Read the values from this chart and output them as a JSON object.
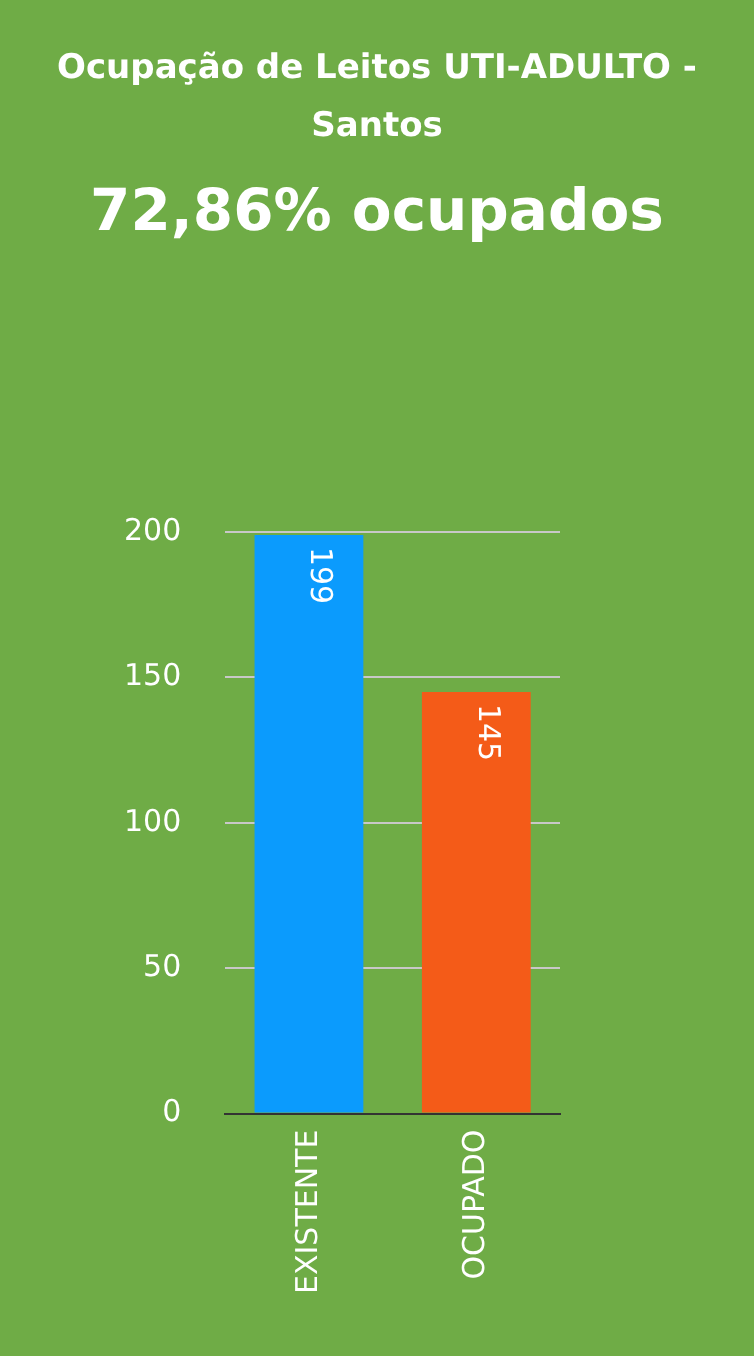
{
  "chart_data": {
    "type": "bar",
    "title": "Ocupação de Leitos UTI-ADULTO - Santos",
    "subtitle": "72,86% ocupados",
    "categories": [
      "EXISTENTE",
      "OCUPADO"
    ],
    "values": [
      199,
      145
    ],
    "colors": [
      "#0b9bfd",
      "#f45b18"
    ],
    "ylim": [
      0,
      200
    ],
    "yticks": [
      0,
      50,
      100,
      150,
      200
    ],
    "grid": "y",
    "data_labels": true
  }
}
